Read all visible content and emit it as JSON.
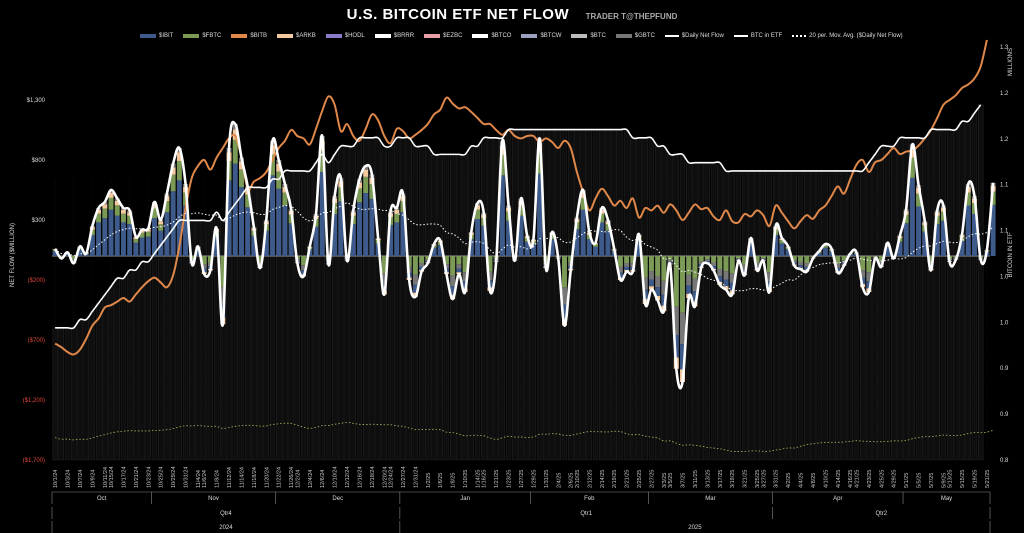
{
  "header": {
    "title": "U.S. BITCOIN ETF NET FLOW",
    "byline": "TRADER T@THEPFUND"
  },
  "legend": [
    {
      "label": "$IBIT",
      "color": "#3d5a8a",
      "kind": "bar"
    },
    {
      "label": "$FBTC",
      "color": "#7a9a55",
      "kind": "bar"
    },
    {
      "label": "$BITB",
      "color": "#e0884a",
      "kind": "bar"
    },
    {
      "label": "$ARKB",
      "color": "#f3c9a0",
      "kind": "bar"
    },
    {
      "label": "$HODL",
      "color": "#8a7ac8",
      "kind": "bar"
    },
    {
      "label": "$BRRR",
      "color": "#ffffff",
      "kind": "bar"
    },
    {
      "label": "$EZBC",
      "color": "#e8a0a8",
      "kind": "bar"
    },
    {
      "label": "$BTCO",
      "color": "#ffffff",
      "kind": "bar"
    },
    {
      "label": "$BTCW",
      "color": "#9aa0c0",
      "kind": "bar"
    },
    {
      "label": "$BTC",
      "color": "#bcbcbc",
      "kind": "bar"
    },
    {
      "label": "$GBTC",
      "color": "#777777",
      "kind": "bar"
    },
    {
      "label": "$Daily Net Flow",
      "color": "#ffffff",
      "kind": "line"
    },
    {
      "label": "BTC in ETF",
      "color": "#ffffff",
      "kind": "line"
    },
    {
      "label": "20 per. Mov. Avg. ($Daily Net Flow)",
      "color": "#ffffff",
      "kind": "dotted"
    }
  ],
  "axes": {
    "left_title": "NET FLOW ($MILLION)",
    "right_title": "BITCOIN IN ETF",
    "right_top": "MILLIONS",
    "left_ticks": [
      {
        "label": "$1,300",
        "value": 1300,
        "neg": false
      },
      {
        "label": "$800",
        "value": 800,
        "neg": false
      },
      {
        "label": "$300",
        "value": 300,
        "neg": false
      },
      {
        "label": "($200)",
        "value": -200,
        "neg": true
      },
      {
        "label": "($700)",
        "value": -700,
        "neg": true
      },
      {
        "label": "($1,200)",
        "value": -1200,
        "neg": true
      },
      {
        "label": "($1,700)",
        "value": -1700,
        "neg": true
      }
    ],
    "right_ticks": [
      "1.3",
      "1.2",
      "1.2",
      "1.1",
      "1.1",
      "1.0",
      "1.0",
      "0.9",
      "0.9",
      "0.8"
    ],
    "months": [
      {
        "label": "Oct",
        "from": 0,
        "to": 16
      },
      {
        "label": "Nov",
        "from": 16,
        "to": 36
      },
      {
        "label": "Dec",
        "from": 36,
        "to": 56
      },
      {
        "label": "Jan",
        "from": 56,
        "to": 77
      },
      {
        "label": "Feb",
        "from": 77,
        "to": 96
      },
      {
        "label": "Mar",
        "from": 96,
        "to": 116
      },
      {
        "label": "Apr",
        "from": 116,
        "to": 137
      },
      {
        "label": "May",
        "from": 137,
        "to": 151
      }
    ],
    "quarters": [
      {
        "label": "Qtr4",
        "from": 0,
        "to": 56
      },
      {
        "label": "Qtr1",
        "from": 56,
        "to": 116
      },
      {
        "label": "Qtr2",
        "from": 116,
        "to": 151
      }
    ],
    "years": [
      {
        "label": "2024",
        "from": 0,
        "to": 56
      },
      {
        "label": "2025",
        "from": 56,
        "to": 151
      }
    ],
    "date_labels": [
      "10/1/24",
      "10/3/24",
      "10/7/24",
      "10/9/24",
      "10/11/24",
      "10/15/24",
      "10/17/24",
      "10/21/24",
      "10/23/24",
      "10/25/24",
      "10/29/24",
      "10/31/24",
      "11/4/24",
      "11/6/24",
      "11/8/24",
      "11/12/24",
      "11/14/24",
      "11/18/24",
      "11/20/24",
      "11/22/24",
      "11/26/24",
      "12/2/24",
      "12/4/24",
      "12/6/24",
      "12/10/24",
      "12/12/24",
      "12/16/24",
      "12/18/24",
      "12/20/24",
      "12/24/24",
      "12/27/24",
      "12/31/24",
      "1/2/25",
      "1/6/25",
      "1/8/25",
      "1/10/25",
      "1/14/25",
      "1/16/25",
      "1/21/25",
      "1/23/25",
      "1/27/25",
      "1/29/25",
      "1/31/25",
      "2/4/25",
      "2/6/25",
      "2/10/25",
      "2/12/25",
      "2/14/25",
      "2/19/25",
      "2/21/25",
      "2/25/25",
      "2/27/25",
      "3/3/25",
      "3/5/25",
      "3/7/25",
      "3/11/25",
      "3/13/25",
      "3/17/25",
      "3/19/25",
      "3/21/25",
      "3/25/25",
      "3/27/25",
      "3/31/25",
      "4/2/25",
      "4/4/25",
      "4/8/25",
      "4/10/25",
      "4/14/25",
      "4/16/25",
      "4/21/25",
      "4/23/25",
      "4/25/25",
      "4/29/25",
      "5/1/25",
      "5/5/25",
      "5/7/25",
      "5/9/25",
      "5/13/25",
      "5/15/25",
      "5/19/25",
      "5/21/25"
    ]
  },
  "chart_data": {
    "type": "bar",
    "title": "U.S. BITCOIN ETF NET FLOW",
    "ylabel": "NET FLOW ($MILLION)",
    "y2label": "BITCOIN IN ETF (MILLIONS)",
    "ylim": [
      -1700,
      1300
    ],
    "y2lim": [
      0.8,
      1.3
    ],
    "n_days": 151,
    "net_flow": [
      60,
      -20,
      30,
      -60,
      80,
      20,
      250,
      400,
      450,
      550,
      480,
      400,
      380,
      160,
      220,
      230,
      450,
      300,
      520,
      770,
      900,
      600,
      -60,
      80,
      -150,
      -120,
      230,
      -570,
      900,
      1100,
      820,
      580,
      240,
      -100,
      300,
      960,
      800,
      600,
      390,
      -60,
      -170,
      80,
      350,
      1000,
      -70,
      500,
      650,
      -40,
      380,
      640,
      750,
      680,
      150,
      -320,
      370,
      400,
      520,
      -200,
      -340,
      -130,
      -60,
      100,
      130,
      -150,
      -360,
      -150,
      -300,
      200,
      440,
      360,
      -290,
      -50,
      960,
      420,
      -40,
      480,
      170,
      140,
      980,
      -100,
      200,
      -20,
      -580,
      -120,
      320,
      550,
      200,
      110,
      400,
      300,
      60,
      -200,
      -130,
      -130,
      180,
      -400,
      -280,
      -370,
      -460,
      -70,
      -940,
      -1050,
      -350,
      -420,
      -100,
      -60,
      -120,
      -240,
      -280,
      -320,
      -40,
      -160,
      150,
      -120,
      -40,
      -300,
      250,
      150,
      80,
      -80,
      -110,
      -130,
      -20,
      40,
      100,
      60,
      -140,
      -80,
      20,
      30,
      -260,
      -300,
      -20,
      -90,
      110,
      -20,
      170,
      390,
      930,
      590,
      290,
      -120,
      380,
      420,
      -50,
      -30,
      180,
      600,
      500,
      -30,
      50,
      610
    ],
    "btc_in_etf_millions": [
      0.96,
      0.96,
      0.96,
      0.96,
      0.97,
      0.97,
      0.98,
      0.99,
      1.0,
      1.01,
      1.02,
      1.02,
      1.03,
      1.03,
      1.04,
      1.04,
      1.05,
      1.06,
      1.07,
      1.08,
      1.09,
      1.09,
      1.09,
      1.09,
      1.09,
      1.09,
      1.1,
      1.09,
      1.1,
      1.11,
      1.12,
      1.13,
      1.13,
      1.13,
      1.13,
      1.14,
      1.14,
      1.15,
      1.15,
      1.15,
      1.15,
      1.15,
      1.16,
      1.17,
      1.16,
      1.17,
      1.18,
      1.18,
      1.18,
      1.19,
      1.19,
      1.19,
      1.19,
      1.18,
      1.18,
      1.19,
      1.19,
      1.19,
      1.18,
      1.18,
      1.18,
      1.17,
      1.17,
      1.17,
      1.17,
      1.17,
      1.17,
      1.18,
      1.18,
      1.19,
      1.19,
      1.19,
      1.19,
      1.2,
      1.2,
      1.2,
      1.2,
      1.2,
      1.2,
      1.2,
      1.2,
      1.2,
      1.2,
      1.2,
      1.2,
      1.2,
      1.2,
      1.2,
      1.2,
      1.2,
      1.2,
      1.2,
      1.2,
      1.19,
      1.19,
      1.19,
      1.19,
      1.18,
      1.18,
      1.17,
      1.17,
      1.17,
      1.16,
      1.16,
      1.16,
      1.16,
      1.16,
      1.16,
      1.15,
      1.15,
      1.15,
      1.15,
      1.15,
      1.15,
      1.15,
      1.15,
      1.15,
      1.15,
      1.15,
      1.15,
      1.15,
      1.15,
      1.15,
      1.15,
      1.15,
      1.15,
      1.15,
      1.15,
      1.15,
      1.15,
      1.15,
      1.16,
      1.17,
      1.18,
      1.18,
      1.18,
      1.19,
      1.19,
      1.19,
      1.19,
      1.19,
      1.2,
      1.2,
      1.2,
      1.2,
      1.2,
      1.21,
      1.21,
      1.22,
      1.23
    ],
    "btc_price_line_left_scale": [
      -730,
      -760,
      -800,
      -820,
      -780,
      -690,
      -580,
      -520,
      -430,
      -410,
      -380,
      -350,
      -380,
      -320,
      -260,
      -210,
      -180,
      -220,
      -260,
      -160,
      80,
      400,
      650,
      750,
      800,
      720,
      820,
      900,
      980,
      1000,
      820,
      560,
      620,
      650,
      700,
      800,
      900,
      960,
      1050,
      1000,
      980,
      930,
      1060,
      1210,
      1330,
      1260,
      1040,
      1100,
      1000,
      960,
      1060,
      1180,
      1130,
      1000,
      940,
      1060,
      1040,
      980,
      1010,
      1050,
      1100,
      1180,
      1220,
      1320,
      1270,
      1230,
      1240,
      1200,
      1150,
      1100,
      1100,
      1050,
      1010,
      1050,
      1000,
      980,
      1000,
      1000,
      950,
      980,
      950,
      900,
      960,
      900,
      700,
      530,
      380,
      480,
      560,
      500,
      420,
      460,
      400,
      480,
      320,
      400,
      380,
      420,
      360,
      430,
      380,
      300,
      360,
      430,
      390,
      400,
      330,
      300,
      380,
      290,
      280,
      350,
      330,
      380,
      340,
      250,
      420,
      360,
      290,
      230,
      290,
      340,
      310,
      380,
      420,
      500,
      580,
      520,
      640,
      760,
      800,
      700,
      780,
      800,
      850,
      900,
      850,
      870,
      880,
      920,
      980,
      1050,
      1150,
      1260,
      1300,
      1340,
      1400,
      1430,
      1480,
      1580,
      1800
    ]
  }
}
